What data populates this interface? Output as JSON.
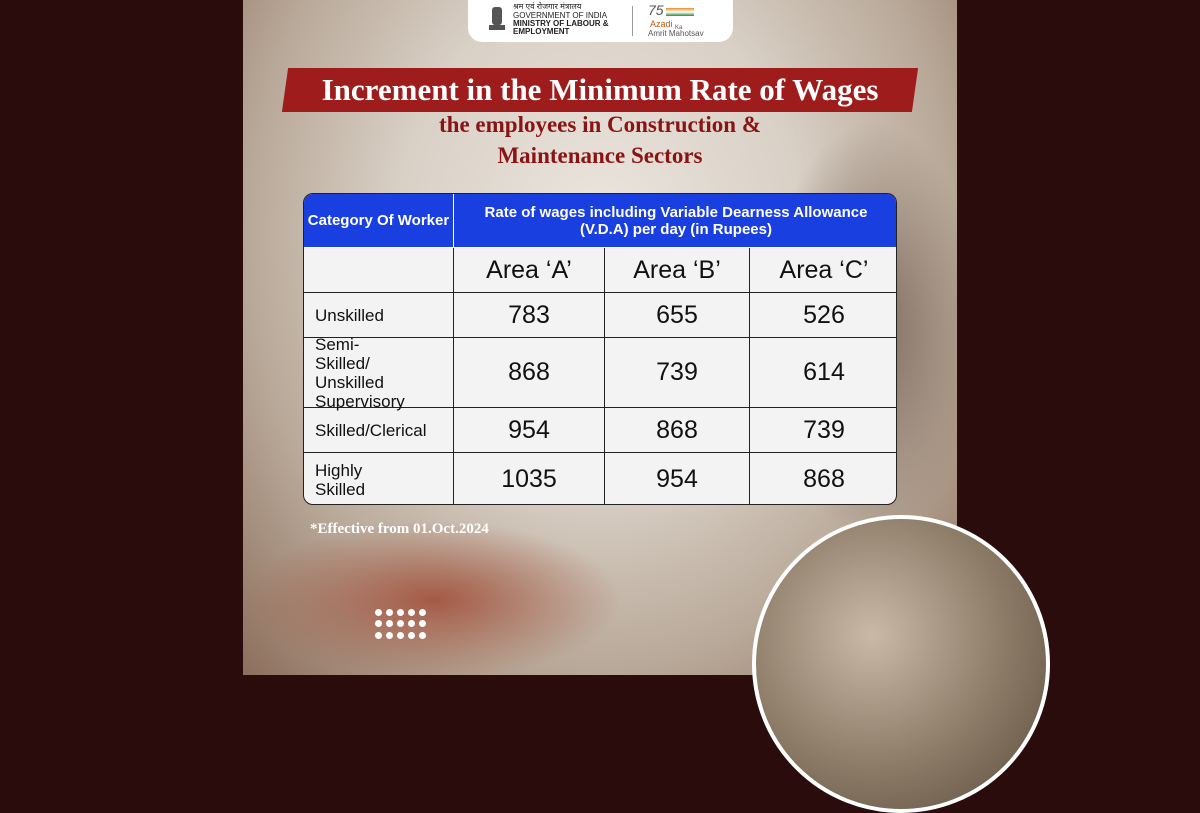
{
  "header": {
    "hindi": "श्रम एवं रोजगार मंत्रालय",
    "line1": "GOVERNMENT OF INDIA",
    "line2": "MINISTRY OF LABOUR &",
    "line3": "EMPLOYMENT",
    "badge_number": "75",
    "badge_azadi": "Azadi",
    "badge_ka": "Ka",
    "badge_amrit": "Amrit Mahotsav"
  },
  "title": "Increment in the Minimum Rate of Wages",
  "subtitle": [
    "the employees in Construction &",
    "Maintenance Sectors"
  ],
  "table": {
    "category_header": "Category Of Worker",
    "rate_header": [
      "Rate of wages including Variable Dearness Allowance",
      "(V.D.A)  per day (in Rupees)"
    ],
    "areas": [
      "Area ‘A’",
      "Area ‘B’",
      "Area ‘C’"
    ],
    "rows": [
      {
        "category": "Unskilled",
        "values": [
          783,
          655,
          526
        ]
      },
      {
        "category": "Semi-Skilled/ Unskilled Supervisory",
        "values": [
          868,
          739,
          614
        ]
      },
      {
        "category": "Skilled/Clerical",
        "values": [
          954,
          868,
          739
        ]
      },
      {
        "category": "Highly Skilled",
        "values": [
          1035,
          954,
          868
        ]
      }
    ]
  },
  "footnote": "*Effective from 01.Oct.2024"
}
